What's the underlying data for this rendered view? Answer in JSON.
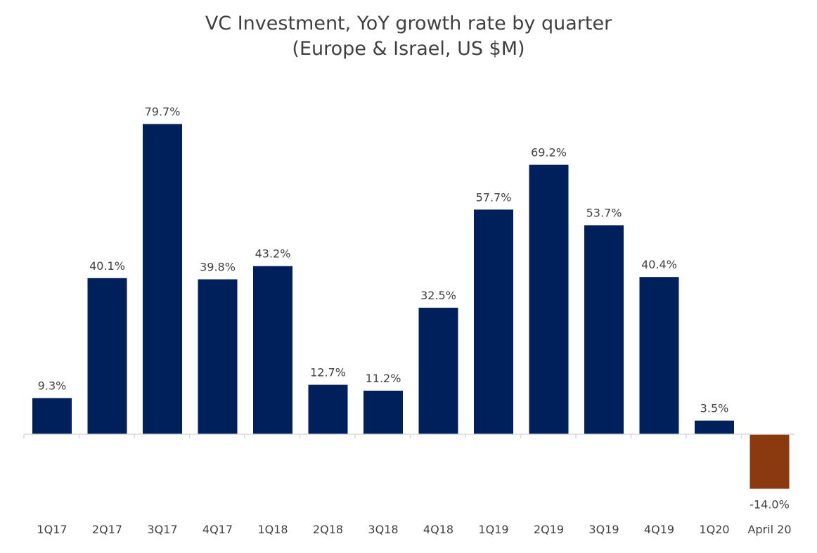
{
  "chart_data": {
    "type": "bar",
    "title": "VC Investment, YoY growth rate by quarter",
    "subtitle": "(Europe & Israel, US $M)",
    "xlabel": "",
    "ylabel": "",
    "categories": [
      "1Q17",
      "2Q17",
      "3Q17",
      "4Q17",
      "1Q18",
      "2Q18",
      "3Q18",
      "4Q18",
      "1Q19",
      "2Q19",
      "3Q19",
      "4Q19",
      "1Q20",
      "April 20"
    ],
    "values": [
      9.3,
      40.1,
      79.7,
      39.8,
      43.2,
      12.7,
      11.2,
      32.5,
      57.7,
      69.2,
      53.7,
      40.4,
      3.5,
      -14.0
    ],
    "value_labels": [
      "9.3%",
      "40.1%",
      "79.7%",
      "39.8%",
      "43.2%",
      "12.7%",
      "11.2%",
      "32.5%",
      "57.7%",
      "69.2%",
      "53.7%",
      "40.4%",
      "3.5%",
      "-14.0%"
    ],
    "unit": "%",
    "ylim": [
      -14.0,
      79.7
    ],
    "grid": false,
    "legend": "none",
    "colors": {
      "positive": "#00205b",
      "negative": "#8b3a0f",
      "axis": "#d9d9d9",
      "text": "#404040"
    }
  }
}
